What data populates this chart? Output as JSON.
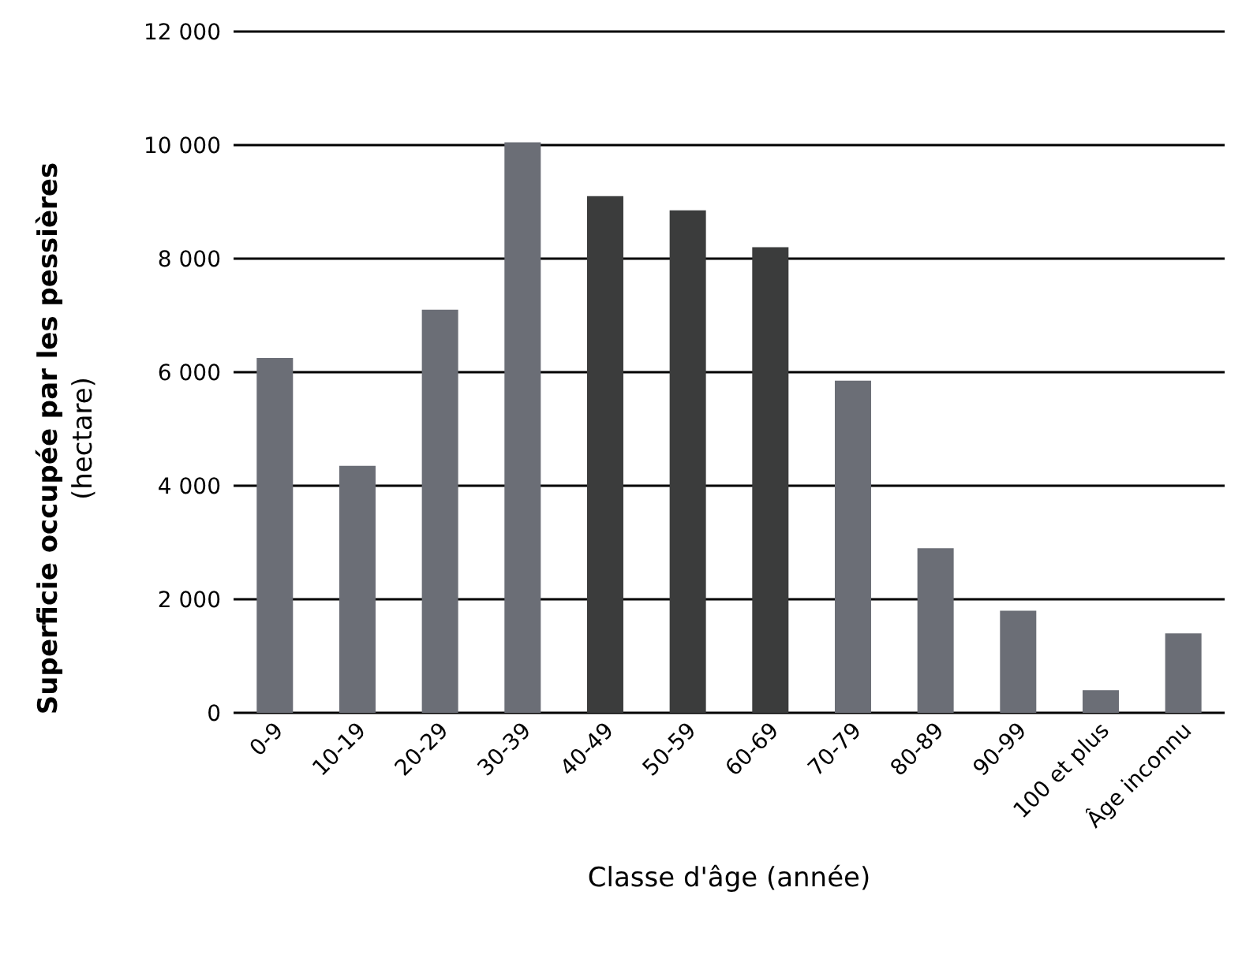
{
  "chart_data": {
    "type": "bar",
    "xlabel": "Classe d'âge (année)",
    "ylabel": "Superficie occupée par les pessières\n(hectare)",
    "categories": [
      "0-9",
      "10-19",
      "20-29",
      "30-39",
      "40-49",
      "50-59",
      "60-69",
      "70-79",
      "80-89",
      "90-99",
      "100 et plus",
      "Âge inconnu"
    ],
    "values": [
      6250,
      4350,
      7100,
      10050,
      9100,
      8850,
      8200,
      5850,
      2900,
      1800,
      400,
      1400
    ],
    "colors": [
      "#6b6e76",
      "#6b6e76",
      "#6b6e76",
      "#6b6e76",
      "#3b3c3c",
      "#3b3c3c",
      "#3b3c3c",
      "#6b6e76",
      "#6b6e76",
      "#6b6e76",
      "#6b6e76",
      "#6b6e76"
    ],
    "ylim": [
      0,
      12000
    ],
    "yticks": [
      0,
      {
        "value": 2000,
        "label": "2 000"
      },
      {
        "value": 4000,
        "label": "4 000"
      },
      {
        "value": 6000,
        "label": "6 000"
      },
      {
        "value": 8000,
        "label": "8 000"
      },
      {
        "value": 10000,
        "label": "10 000"
      },
      {
        "value": 12000,
        "label": "12 000"
      }
    ],
    "grid": "y"
  }
}
